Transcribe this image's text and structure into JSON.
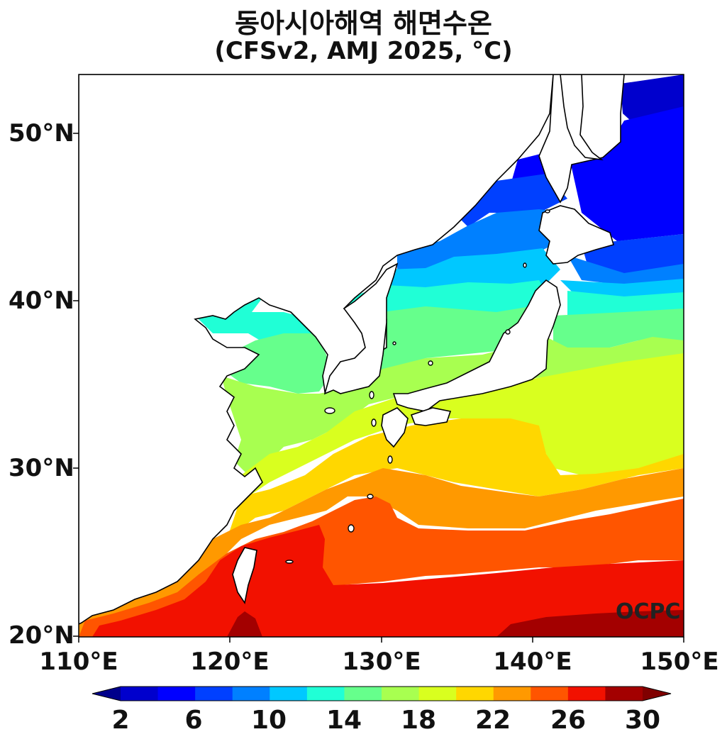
{
  "title": {
    "line1": "동아시아해역 해면수온",
    "line2": "(CFSv2, AMJ 2025, °C)"
  },
  "axes": {
    "lat_labels": [
      "50°N",
      "40°N",
      "30°N",
      "20°N"
    ],
    "lon_labels": [
      "110°E",
      "120°E",
      "130°E",
      "140°E",
      "150°E"
    ]
  },
  "map_extent": {
    "lon": [
      110,
      150
    ],
    "lat": [
      20,
      53.5
    ]
  },
  "watermark": "OCPC",
  "colorbar": {
    "tick_labels": [
      "2",
      "6",
      "10",
      "14",
      "18",
      "22",
      "26",
      "30"
    ],
    "levels": [
      2,
      4,
      6,
      8,
      10,
      12,
      14,
      16,
      18,
      20,
      22,
      24,
      26,
      28,
      30
    ],
    "extend": "both",
    "colors": [
      "#00008b",
      "#0000cd",
      "#0000ff",
      "#0040ff",
      "#0080ff",
      "#00c8ff",
      "#20ffd6",
      "#66ff8c",
      "#a8ff50",
      "#d9ff1f",
      "#ffd700",
      "#ff9900",
      "#ff5500",
      "#f21100",
      "#a30000",
      "#800000"
    ]
  },
  "sst_field": {
    "description_units": "°C",
    "bands": [
      {
        "range": "28-30",
        "color": "#a30000"
      },
      {
        "range": "26-28",
        "color": "#f21100"
      },
      {
        "range": "24-26",
        "color": "#ff5500"
      },
      {
        "range": "22-24",
        "color": "#ff9900"
      },
      {
        "range": "20-22",
        "color": "#ffd700"
      },
      {
        "range": "18-20",
        "color": "#d9ff1f"
      },
      {
        "range": "16-18",
        "color": "#a8ff50"
      },
      {
        "range": "14-16",
        "color": "#66ff8c"
      },
      {
        "range": "12-14",
        "color": "#20ffd6"
      },
      {
        "range": "10-12",
        "color": "#00c8ff"
      },
      {
        "range": "8-10",
        "color": "#0080ff"
      },
      {
        "range": "6-8",
        "color": "#0040ff"
      },
      {
        "range": "4-6",
        "color": "#0000ff"
      },
      {
        "range": "2-4",
        "color": "#0000cd"
      }
    ]
  }
}
